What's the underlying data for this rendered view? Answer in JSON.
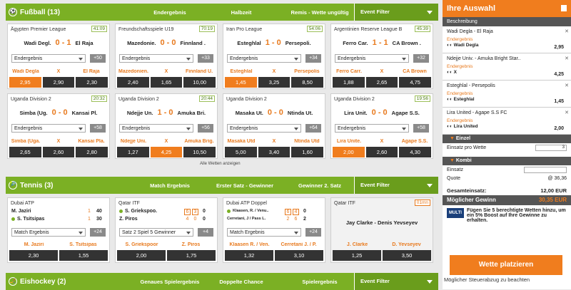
{
  "football": {
    "title": "Fußball (13)",
    "cols": [
      "Endergebnis",
      "Halbzeit",
      "Remis - Wette ungültig"
    ],
    "filter": "Event Filter",
    "matches": [
      {
        "league": "Ägypten Premier League",
        "time": "41:09",
        "home": "Wadi Degl.",
        "away": "El Raja",
        "score": "0 - 1",
        "market": "Endergebnis",
        "more": "+50",
        "labels": [
          "Wadi Degla",
          "X",
          "El Raja"
        ],
        "odds": [
          "2,95",
          "2,90",
          "2,30"
        ]
      },
      {
        "league": "Freundschaftsspiele U19",
        "time": "70:19",
        "home": "Mazedonie.",
        "away": "Finnland .",
        "score": "0 - 0",
        "market": "Endergebnis",
        "more": "+33",
        "labels": [
          "Mazedonien.",
          "X",
          "Finnland U."
        ],
        "odds": [
          "2,40",
          "1,65",
          "10,00"
        ]
      },
      {
        "league": "Iran Pro League",
        "time": "54:06",
        "home": "Esteghlal",
        "away": "Persepoli.",
        "score": "1 - 0",
        "market": "Endergebnis",
        "more": "+34",
        "labels": [
          "Esteghlal",
          "X",
          "Persepolis"
        ],
        "odds": [
          "1,45",
          "3,25",
          "8,50"
        ]
      },
      {
        "league": "Argentinien Reserve League B",
        "time": "45:39",
        "home": "Ferro Car.",
        "away": "CA Brown .",
        "score": "1 - 1",
        "market": "Endergebnis",
        "more": "+32",
        "labels": [
          "Ferro Carr.",
          "X",
          "CA Brown"
        ],
        "odds": [
          "1,88",
          "2,65",
          "4,75"
        ]
      },
      {
        "league": "Uganda Division 2",
        "time": "20:32",
        "home": "Simba (Ug.",
        "away": "Kansai Pl.",
        "score": "0 - 0",
        "market": "Endergebnis",
        "more": "+58",
        "labels": [
          "Simba (Uga.",
          "X",
          "Kansai Pla."
        ],
        "odds": [
          "2,65",
          "2,60",
          "2,80"
        ]
      },
      {
        "league": "Uganda Division 2",
        "time": "20:44",
        "home": "Ndejje Un.",
        "away": "Amuka Bri.",
        "score": "1 - 0",
        "market": "Endergebnis",
        "more": "+56",
        "labels": [
          "Ndejje Uni.",
          "X",
          "Amuka Brig."
        ],
        "odds": [
          "1,27",
          "4,25",
          "10,50"
        ]
      },
      {
        "league": "Uganda Division 2",
        "time": "",
        "home": "Masaka Ut.",
        "away": "Ntinda Ut.",
        "score": "0 - 0",
        "market": "Endergebnis",
        "more": "+64",
        "labels": [
          "Masaka Utd",
          "X",
          "Ntinda Utd"
        ],
        "odds": [
          "5,00",
          "3,40",
          "1,60"
        ]
      },
      {
        "league": "Uganda Division 2",
        "time": "19:56",
        "home": "Lira Unit.",
        "away": "Agape S.S.",
        "score": "0 - 0",
        "market": "Endergebnis",
        "more": "+58",
        "labels": [
          "Lira Unite.",
          "X",
          "Agape S.S."
        ],
        "odds": [
          "2,00",
          "2,60",
          "4,30"
        ]
      }
    ],
    "all_bets": "Alle Wetten anzeigen"
  },
  "tennis": {
    "title": "Tennis (3)",
    "cols": [
      "Match Ergebnis",
      "Erster Satz - Gewinner",
      "Gewinner 2. Satz"
    ],
    "filter": "Event Filter",
    "m1": {
      "league": "Dubai ATP",
      "p1": "M. Jaziri",
      "p2": "S. Tsitsipas",
      "s1": [
        "1",
        "40"
      ],
      "s2": [
        "1",
        "30"
      ],
      "market": "Match Ergebnis",
      "more": "+24",
      "labels": [
        "M. Jaziri",
        "S. Tsitsipas"
      ],
      "odds": [
        "2,30",
        "1,55"
      ]
    },
    "m2": {
      "league": "Qatar ITF",
      "p1": "S. Griekspoo.",
      "p2": "Z. Piros",
      "s1": [
        "6",
        "3",
        "0"
      ],
      "s2": [
        "4",
        "0",
        "0"
      ],
      "market": "Satz 2 Spiel 5 Gewinner",
      "more": "+4",
      "labels": [
        "S. Griekspoor",
        "Z. Piros"
      ],
      "odds": [
        "2,00",
        "1,75"
      ]
    },
    "m3": {
      "league": "Dubai ATP Doppel",
      "p1": "Klaasen, R. / Venu..",
      "p2": "Cerretani, J / Pass L.",
      "s1": [
        "6",
        "4",
        "0"
      ],
      "s2": [
        "2",
        "6",
        "2"
      ],
      "market": "Match Ergebnis",
      "more": "+24",
      "labels": [
        "Klaasen R. / Ven.",
        "Cerretani J. / P."
      ],
      "odds": [
        "1,32",
        "3,10"
      ]
    },
    "m4": {
      "league": "Qatar ITF",
      "time": "01mn",
      "match": "Jay Clarke - Denis Yevseyev",
      "labels": [
        "J. Clarke",
        "D. Yevseyev"
      ],
      "odds": [
        "1,25",
        "3,50"
      ]
    }
  },
  "hockey": {
    "title": "Eishockey (2)",
    "cols": [
      "Genaues Spielergebnis",
      "Doppelte Chance",
      "Spielergebnis"
    ],
    "filter": "Event Filter"
  },
  "slip": {
    "title": "Ihre Auswahl",
    "sub": "Beschreibung",
    "bets": [
      {
        "title": "Wadi Degla - El Raja",
        "market": "Endergebnis",
        "pick": "Wadi Degla",
        "odd": "2,95"
      },
      {
        "title": "Ndejje Univ. - Amuka Bright Star..",
        "market": "Endergebnis",
        "pick": "X",
        "odd": "4,25"
      },
      {
        "title": "Esteghlal - Persepolis",
        "market": "Endergebnis",
        "pick": "Esteghlal",
        "odd": "1,45"
      },
      {
        "title": "Lira United - Agape S.S FC",
        "market": "Endergebnis",
        "pick": "Lira United",
        "odd": "2,00"
      }
    ],
    "einzel": "Einzel",
    "einsatz_label": "Einsatz pro Wette",
    "einsatz_val": "3",
    "kombi": "Kombi",
    "kombi_einsatz": "Einsatz",
    "quote_label": "Quote",
    "quote_val": "@ 36,36",
    "ges_label": "Gesamteinsatz:",
    "ges_val": "12,00 EUR",
    "gew_label": "Möglicher Gewinn",
    "gew_val": "30,35 EUR",
    "multi_logo": "MULTI",
    "multi_text": "Fügen Sie 5 berechtigte Wetten hinzu, um ein 5% Boost auf Ihre Gewinne zu erhalten.",
    "place": "Wette platzieren",
    "steuer": "Möglicher Steuerabzug zu beachten"
  }
}
